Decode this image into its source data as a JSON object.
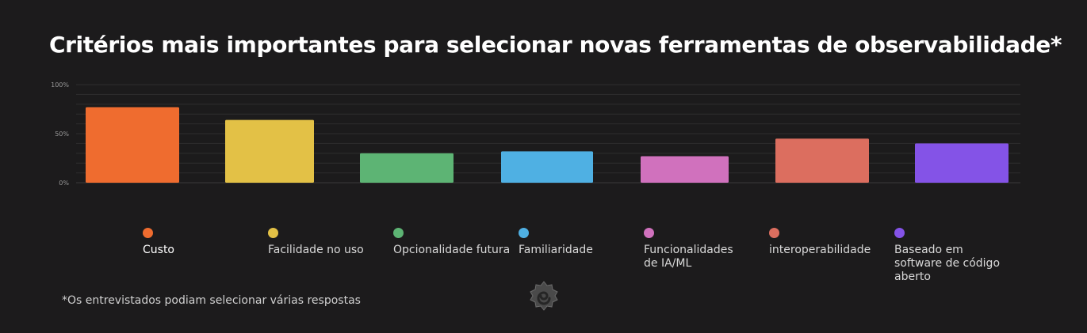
{
  "title": "Critérios mais importantes para selecionar novas ferramentas de observabilidade*",
  "footnote": "*Os entrevistados podiam selecionar várias respostas",
  "chart_data": {
    "type": "bar",
    "y_ticks": [
      "100%",
      "50%",
      "0%"
    ],
    "ylim": [
      0,
      100
    ],
    "grid": true,
    "legend_position": "bottom",
    "categories": [
      "Custo",
      "Facilidade no uso",
      "Opcionalidade futura",
      "Familiaridade",
      "Funcionalidades de IA/ML",
      "interoperabilidade",
      "Baseado em software de código aberto"
    ],
    "values": [
      77,
      64,
      30,
      32,
      27,
      45,
      40
    ],
    "colors": [
      "#ef6c2f",
      "#e3c146",
      "#5db474",
      "#4fb0e3",
      "#d071bd",
      "#dc6e5f",
      "#8453e7"
    ]
  },
  "icons": {
    "logo": "grafana-logo-icon"
  }
}
